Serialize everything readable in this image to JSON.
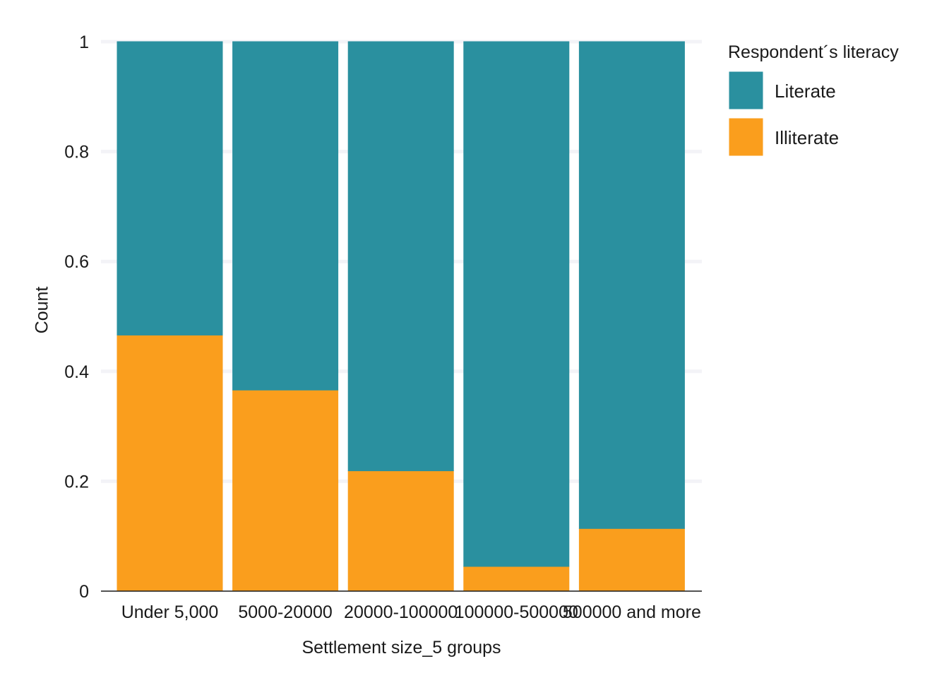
{
  "chart_data": {
    "type": "bar",
    "stacked": true,
    "categories": [
      "Under 5,000",
      "5000-20000",
      "20000-100000",
      "100000-500000",
      "500000 and more"
    ],
    "series": [
      {
        "name": "Illiterate",
        "color": "#fa9e1d",
        "values": [
          0.466,
          0.366,
          0.219,
          0.045,
          0.114
        ]
      },
      {
        "name": "Literate",
        "color": "#2a909f",
        "values": [
          0.534,
          0.634,
          0.781,
          0.955,
          0.886
        ]
      }
    ],
    "xlabel": "Settlement size_5 groups",
    "ylabel": "Count",
    "ylim": [
      0,
      1
    ],
    "yticks": [
      {
        "value": 0,
        "label": "0"
      },
      {
        "value": 0.2,
        "label": "0.2"
      },
      {
        "value": 0.4,
        "label": "0.4"
      },
      {
        "value": 0.6,
        "label": "0.6"
      },
      {
        "value": 0.8,
        "label": "0.8"
      },
      {
        "value": 1,
        "label": "1"
      }
    ],
    "grid": true,
    "legend": {
      "title": "Respondent´s literacy",
      "position": "right",
      "entries": [
        {
          "label": "Literate",
          "color": "#2a909f"
        },
        {
          "label": "Illiterate",
          "color": "#fa9e1d"
        }
      ]
    }
  }
}
